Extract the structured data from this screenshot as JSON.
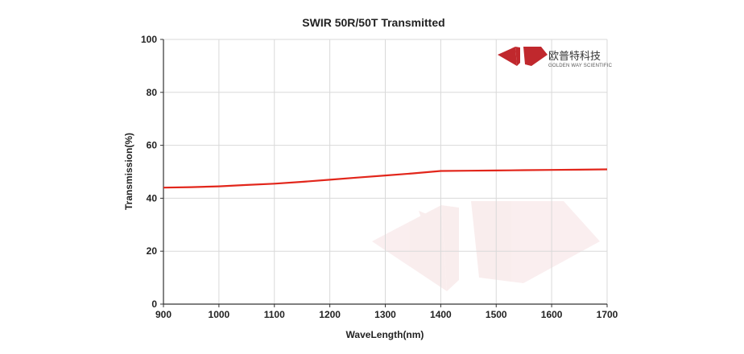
{
  "chart_data": {
    "type": "line",
    "title": "SWIR 50R/50T Transmitted",
    "xlabel": "WaveLength(nm)",
    "ylabel": "Transmission(%)",
    "xlim": [
      900,
      1700
    ],
    "ylim": [
      0,
      100
    ],
    "x_ticks": [
      900,
      1000,
      1100,
      1200,
      1300,
      1400,
      1500,
      1600,
      1700
    ],
    "y_ticks": [
      0,
      20,
      40,
      60,
      80,
      100
    ],
    "grid": true,
    "series": [
      {
        "color": "#e2261b",
        "x": [
          900,
          950,
          1000,
          1050,
          1100,
          1150,
          1200,
          1250,
          1300,
          1350,
          1400,
          1450,
          1500,
          1550,
          1600,
          1650,
          1700
        ],
        "y": [
          44.0,
          44.2,
          44.5,
          45.0,
          45.5,
          46.2,
          47.0,
          47.8,
          48.6,
          49.4,
          50.3,
          50.4,
          50.5,
          50.6,
          50.7,
          50.8,
          50.9
        ]
      }
    ]
  },
  "logo": {
    "name_cn": "欧普特科技",
    "name_en": "GOLDEN WAY SCIENTIFIC",
    "color": "#c0282d"
  }
}
